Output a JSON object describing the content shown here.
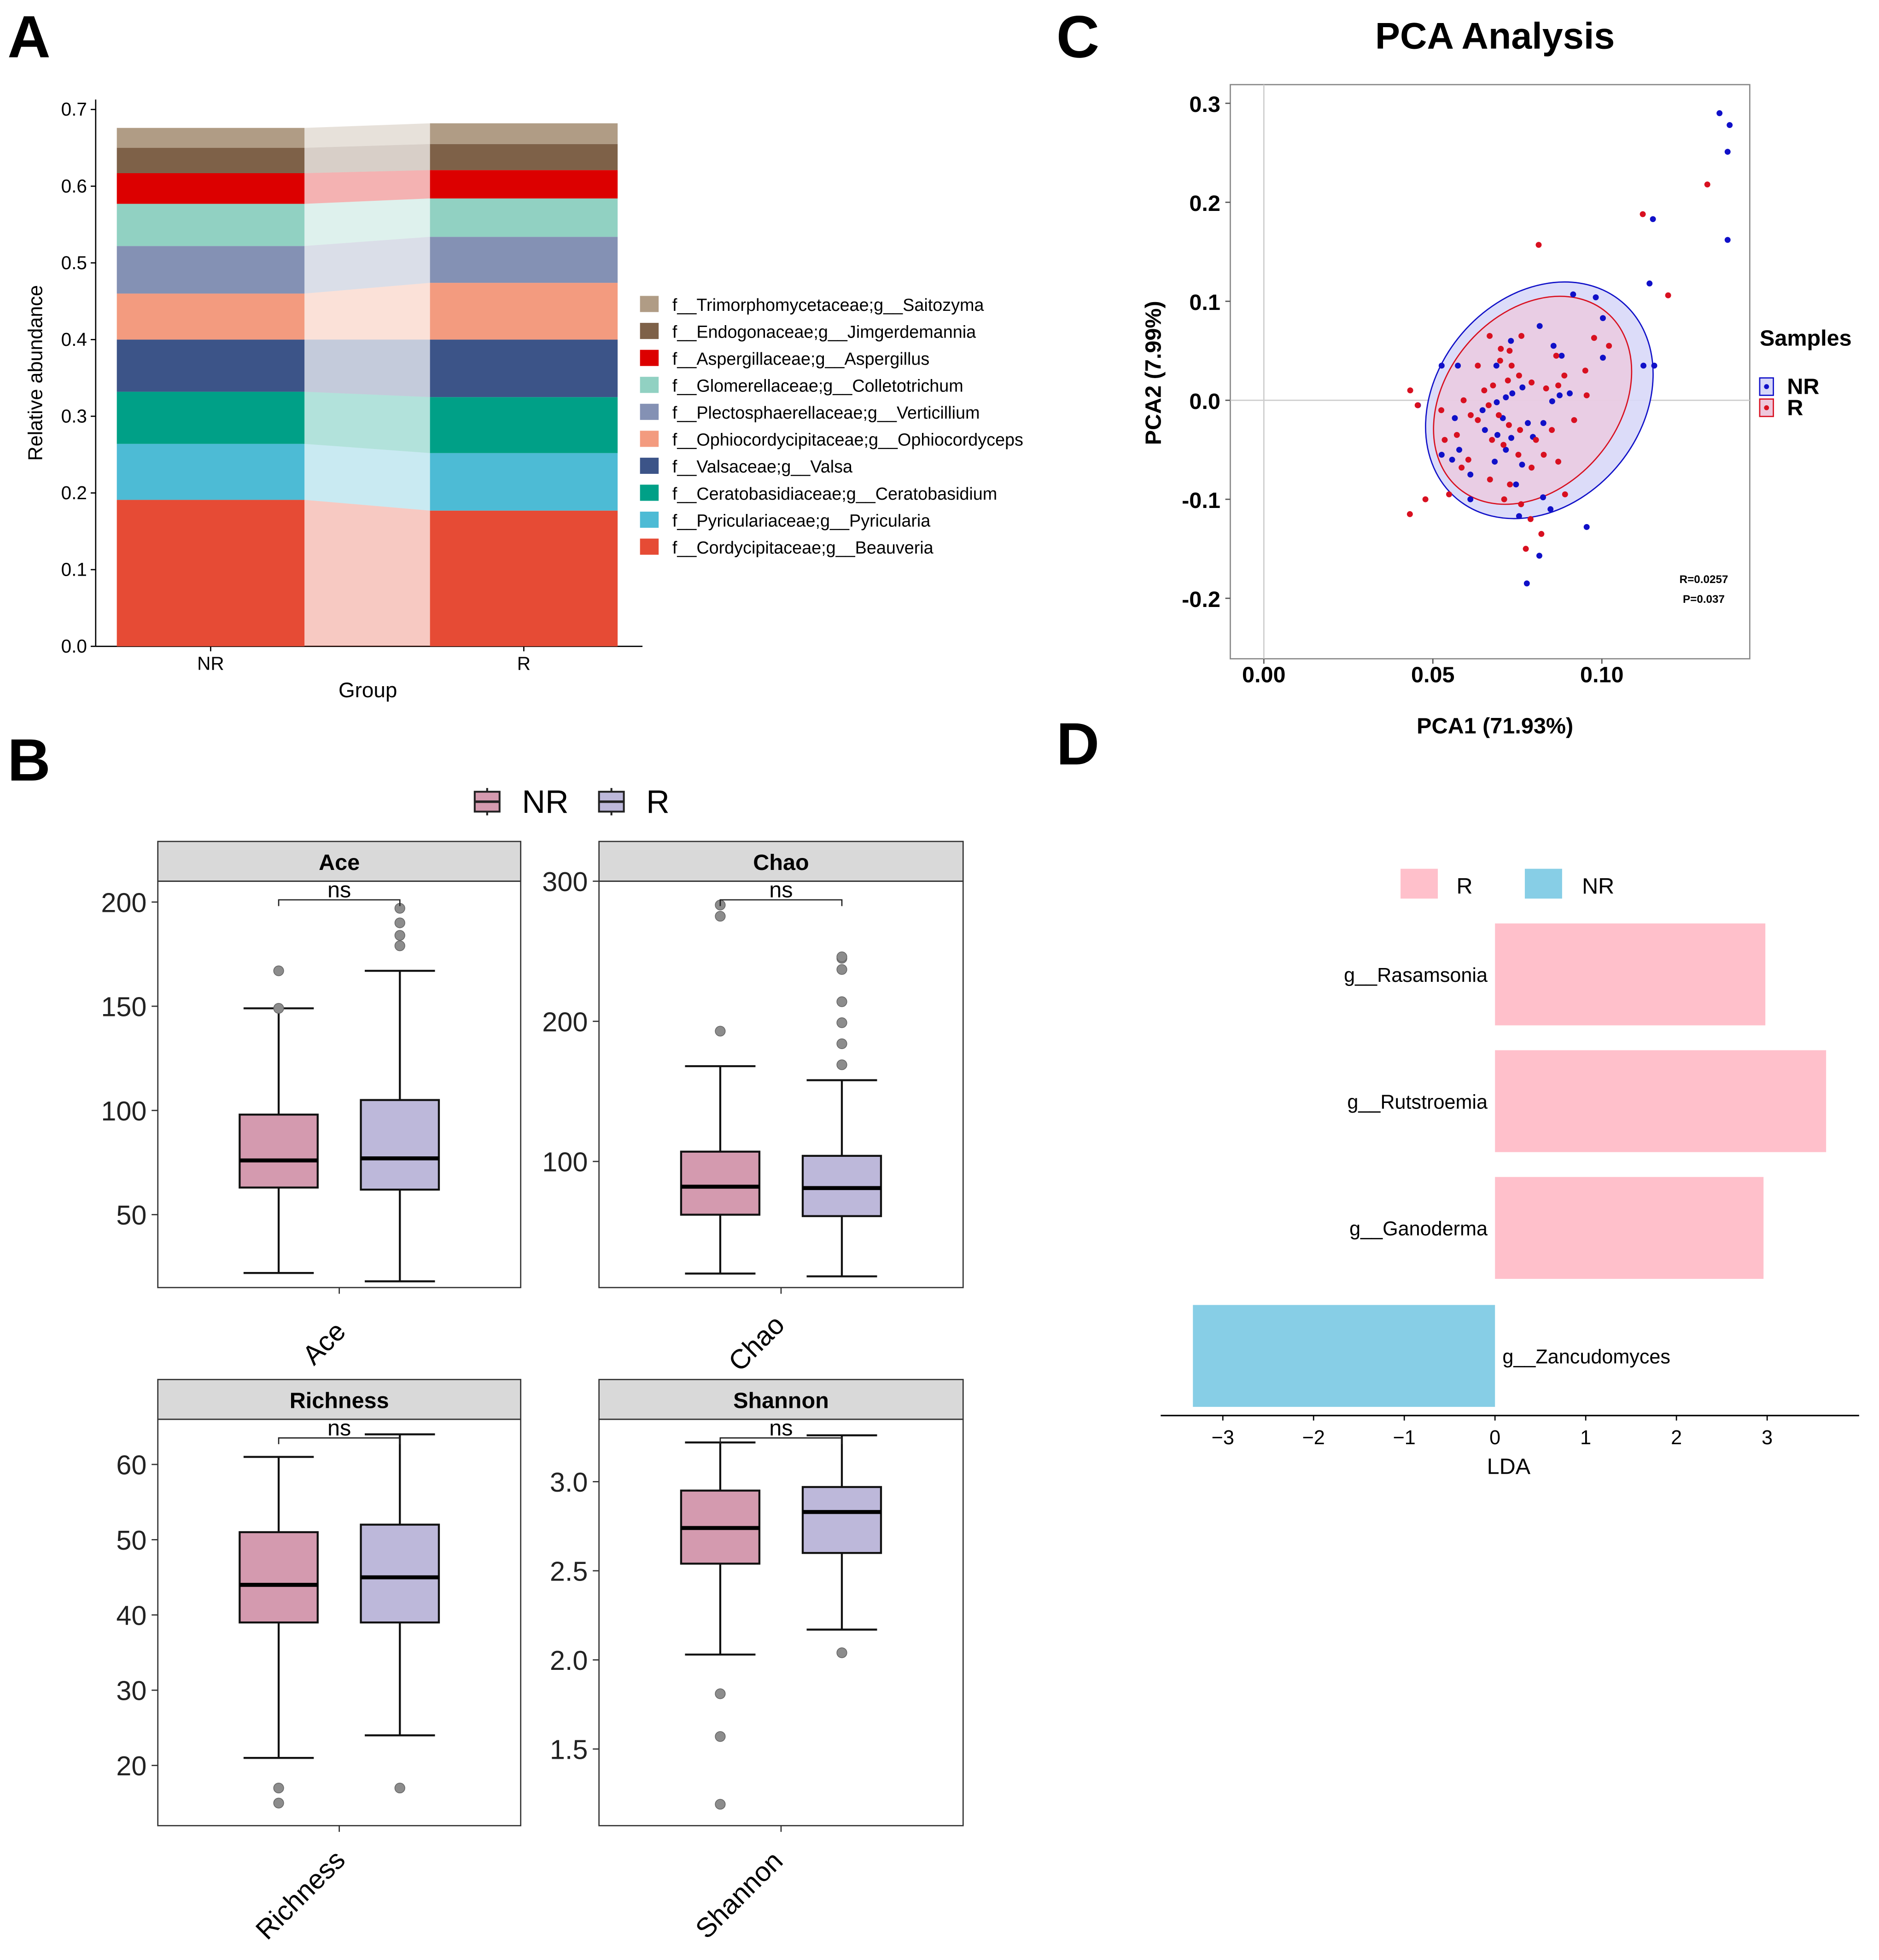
{
  "panel_labels": [
    "A",
    "B",
    "C",
    "D"
  ],
  "colors": {
    "nr_box": "#D49AAF",
    "r_box": "#BDB8DA",
    "strip": "#D9D9D9",
    "pca_nr": "#1010C8",
    "pca_r": "#D81020",
    "lda_r": "#FFC0CB",
    "lda_nr": "#87CEE6",
    "outlier": "#8C8C8C"
  },
  "chart_data": [
    {
      "id": "A",
      "type": "bar",
      "stacked": true,
      "title": "",
      "xlabel": "Group",
      "ylabel": "Relative abundance",
      "categories": [
        "NR",
        "R"
      ],
      "ylim": [
        0,
        0.7
      ],
      "yticks": [
        "0.0",
        "0.1",
        "0.2",
        "0.3",
        "0.4",
        "0.5",
        "0.6",
        "0.7"
      ],
      "series": [
        {
          "name": "f__Cordycipitaceae;g__Beauveria",
          "color": "#E64B35",
          "values": [
            0.191,
            0.177
          ]
        },
        {
          "name": "f__Pyriculariaceae;g__Pyricularia",
          "color": "#4DBBD5",
          "values": [
            0.073,
            0.075
          ]
        },
        {
          "name": "f__Ceratobasidiaceae;g__Ceratobasidium",
          "color": "#00A087",
          "values": [
            0.068,
            0.073
          ]
        },
        {
          "name": "f__Valsaceae;g__Valsa",
          "color": "#3C5488",
          "values": [
            0.068,
            0.075
          ]
        },
        {
          "name": "f__Ophiocordycipitaceae;g__Ophiocordyceps",
          "color": "#F39B7F",
          "values": [
            0.06,
            0.074
          ]
        },
        {
          "name": "f__Plectosphaerellaceae;g__Verticillium",
          "color": "#8491B4",
          "values": [
            0.062,
            0.06
          ]
        },
        {
          "name": "f__Glomerellaceae;g__Colletotrichum",
          "color": "#91D1C2",
          "values": [
            0.055,
            0.05
          ]
        },
        {
          "name": "f__Aspergillaceae;g__Aspergillus",
          "color": "#DC0000",
          "values": [
            0.04,
            0.037
          ]
        },
        {
          "name": "f__Endogonaceae;g__Jimgerdemannia",
          "color": "#7E6148",
          "values": [
            0.033,
            0.034
          ]
        },
        {
          "name": "f__Trimorphomycetaceae;g__Saitozyma",
          "color": "#B09C85",
          "values": [
            0.026,
            0.027
          ]
        }
      ]
    },
    {
      "id": "B",
      "type": "box",
      "legend": [
        "NR",
        "R"
      ],
      "facets": [
        {
          "title": "Ace",
          "xtick": "Ace",
          "sig": "ns",
          "ylim": [
            15,
            210
          ],
          "yticks": [
            50,
            100,
            150,
            200
          ],
          "groups": [
            {
              "name": "NR",
              "q1": 63,
              "median": 76,
              "q3": 98,
              "wlow": 22,
              "whigh": 149,
              "outliers": [
                149,
                167
              ]
            },
            {
              "name": "R",
              "q1": 62,
              "median": 77,
              "q3": 105,
              "wlow": 18,
              "whigh": 167,
              "outliers": [
                179,
                184,
                190,
                197
              ]
            }
          ]
        },
        {
          "title": "Chao",
          "xtick": "Chao",
          "sig": "ns",
          "ylim": [
            10,
            300
          ],
          "yticks": [
            100,
            200,
            300
          ],
          "groups": [
            {
              "name": "NR",
              "q1": 62,
              "median": 82,
              "q3": 107,
              "wlow": 20,
              "whigh": 168,
              "outliers": [
                193,
                275,
                283
              ]
            },
            {
              "name": "R",
              "q1": 61,
              "median": 81,
              "q3": 104,
              "wlow": 18,
              "whigh": 158,
              "outliers": [
                169,
                184,
                199,
                214,
                237,
                245,
                246
              ]
            }
          ]
        },
        {
          "title": "Richness",
          "xtick": "Richness",
          "sig": "ns",
          "ylim": [
            12,
            66
          ],
          "yticks": [
            20,
            30,
            40,
            50,
            60
          ],
          "groups": [
            {
              "name": "NR",
              "q1": 39,
              "median": 44,
              "q3": 51,
              "wlow": 21,
              "whigh": 61,
              "outliers": [
                15,
                17
              ]
            },
            {
              "name": "R",
              "q1": 39,
              "median": 45,
              "q3": 52,
              "wlow": 24,
              "whigh": 64,
              "outliers": [
                17
              ]
            }
          ]
        },
        {
          "title": "Shannon",
          "xtick": "Shannon",
          "sig": "ns",
          "ylim": [
            1.07,
            3.35
          ],
          "yticks": [
            "1.5",
            "2.0",
            "2.5",
            "3.0"
          ],
          "groups": [
            {
              "name": "NR",
              "q1": 2.54,
              "median": 2.74,
              "q3": 2.95,
              "wlow": 2.03,
              "whigh": 3.22,
              "outliers": [
                1.19,
                1.57,
                1.81
              ]
            },
            {
              "name": "R",
              "q1": 2.6,
              "median": 2.83,
              "q3": 2.97,
              "wlow": 2.17,
              "whigh": 3.26,
              "outliers": [
                2.04
              ]
            }
          ]
        }
      ]
    },
    {
      "id": "C",
      "type": "scatter",
      "title": "PCA Analysis",
      "xlabel": "PCA1 (71.93%)",
      "ylabel": "PCA2 (7.99%)",
      "xlim": [
        -0.005,
        0.144
      ],
      "ylim": [
        -0.26,
        0.32
      ],
      "xticks": [
        "0.00",
        "0.05",
        "0.10"
      ],
      "yticks": [
        "-0.2",
        "-0.1",
        "0.0",
        "0.1",
        "0.2",
        "0.3"
      ],
      "legend_title": "Samples",
      "annotation": [
        "R=0.0257",
        "P=0.037"
      ],
      "ellipses": [
        {
          "name": "NR",
          "cx": 0.0815,
          "cy": 0.0,
          "rx": 0.038,
          "ry": 0.172,
          "angle": 28
        },
        {
          "name": "R",
          "cx": 0.0795,
          "cy": 0.0,
          "rx": 0.034,
          "ry": 0.145,
          "angle": 28
        }
      ],
      "series": [
        {
          "name": "NR",
          "points": [
            [
              0.1348,
              0.29
            ],
            [
              0.1378,
              0.278
            ],
            [
              0.1372,
              0.251
            ],
            [
              0.1372,
              0.162
            ],
            [
              0.1151,
              0.183
            ],
            [
              0.1141,
              0.118
            ],
            [
              0.0915,
              0.107
            ],
            [
              0.0982,
              0.104
            ],
            [
              0.1003,
              0.083
            ],
            [
              0.1155,
              0.035
            ],
            [
              0.1123,
              0.035
            ],
            [
              0.1003,
              0.043
            ],
            [
              0.0881,
              0.045
            ],
            [
              0.0857,
              0.055
            ],
            [
              0.0816,
              0.075
            ],
            [
              0.0731,
              0.06
            ],
            [
              0.0688,
              0.035
            ],
            [
              0.0574,
              0.035
            ],
            [
              0.0526,
              0.035
            ],
            [
              0.0456,
              -0.005
            ],
            [
              0.0526,
              -0.055
            ],
            [
              0.0578,
              -0.05
            ],
            [
              0.0611,
              -0.075
            ],
            [
              0.0716,
              -0.05
            ],
            [
              0.0746,
              -0.085
            ],
            [
              0.0826,
              -0.098
            ],
            [
              0.0755,
              -0.117
            ],
            [
              0.0848,
              -0.11
            ],
            [
              0.0955,
              -0.128
            ],
            [
              0.0778,
              -0.185
            ],
            [
              0.0815,
              -0.157
            ],
            [
              0.0647,
              -0.01
            ],
            [
              0.0689,
              -0.002
            ],
            [
              0.0716,
              0.003
            ],
            [
              0.0735,
              0.007
            ],
            [
              0.0765,
              0.013
            ],
            [
              0.0781,
              -0.023
            ],
            [
              0.0796,
              -0.037
            ],
            [
              0.0827,
              -0.023
            ],
            [
              0.0853,
              -0.001
            ],
            [
              0.0875,
              0.005
            ],
            [
              0.0905,
              0.007
            ],
            [
              0.0707,
              -0.018
            ],
            [
              0.0654,
              -0.03
            ],
            [
              0.0565,
              -0.018
            ],
            [
              0.0557,
              -0.06
            ],
            [
              0.0611,
              -0.1
            ],
            [
              0.0683,
              -0.062
            ],
            [
              0.0764,
              -0.065
            ],
            [
              0.0732,
              -0.038
            ],
            [
              0.0691,
              -0.035
            ]
          ]
        },
        {
          "name": "R",
          "points": [
            [
              0.1312,
              0.218
            ],
            [
              0.1121,
              0.188
            ],
            [
              0.1196,
              0.106
            ],
            [
              0.0813,
              0.157
            ],
            [
              0.0977,
              0.063
            ],
            [
              0.1021,
              0.055
            ],
            [
              0.0951,
              0.03
            ],
            [
              0.0955,
              0.005
            ],
            [
              0.0889,
              0.025
            ],
            [
              0.0865,
              0.045
            ],
            [
              0.0762,
              0.065
            ],
            [
              0.0727,
              0.05
            ],
            [
              0.0699,
              0.04
            ],
            [
              0.0633,
              0.035
            ],
            [
              0.0433,
              0.01
            ],
            [
              0.0455,
              -0.005
            ],
            [
              0.0478,
              -0.1
            ],
            [
              0.0432,
              -0.115
            ],
            [
              0.0548,
              -0.095
            ],
            [
              0.0585,
              -0.068
            ],
            [
              0.0605,
              -0.06
            ],
            [
              0.0669,
              -0.08
            ],
            [
              0.0728,
              -0.085
            ],
            [
              0.0761,
              -0.105
            ],
            [
              0.0789,
              -0.12
            ],
            [
              0.0821,
              -0.135
            ],
            [
              0.0775,
              -0.15
            ],
            [
              0.0711,
              -0.1
            ],
            [
              0.0891,
              -0.095
            ],
            [
              0.0871,
              -0.062
            ],
            [
              0.0828,
              -0.055
            ],
            [
              0.0792,
              -0.068
            ],
            [
              0.0753,
              -0.055
            ],
            [
              0.0709,
              -0.045
            ],
            [
              0.0675,
              -0.04
            ],
            [
              0.0633,
              -0.02
            ],
            [
              0.0612,
              -0.015
            ],
            [
              0.0571,
              -0.035
            ],
            [
              0.0535,
              -0.04
            ],
            [
              0.0525,
              -0.01
            ],
            [
              0.0591,
              0.0
            ],
            [
              0.0652,
              0.01
            ],
            [
              0.0678,
              0.015
            ],
            [
              0.0722,
              0.02
            ],
            [
              0.0755,
              0.025
            ],
            [
              0.0792,
              0.018
            ],
            [
              0.0835,
              0.012
            ],
            [
              0.0871,
              0.015
            ],
            [
              0.0918,
              -0.02
            ],
            [
              0.0852,
              -0.03
            ],
            [
              0.0805,
              -0.04
            ],
            [
              0.0758,
              -0.03
            ],
            [
              0.0725,
              -0.025
            ],
            [
              0.0695,
              -0.015
            ],
            [
              0.0665,
              -0.005
            ],
            [
              0.0733,
              0.035
            ],
            [
              0.0701,
              0.052
            ],
            [
              0.0668,
              0.065
            ]
          ]
        }
      ]
    },
    {
      "id": "D",
      "type": "bar",
      "orientation": "horizontal",
      "xlabel": "LDA",
      "xlim": [
        -3.7,
        4.0
      ],
      "xticks": [
        "−3",
        "−2",
        "−1",
        "0",
        "1",
        "2",
        "3"
      ],
      "legend": [
        "R",
        "NR"
      ],
      "bars": [
        {
          "name": "g__Rasamsonia",
          "value": 2.98,
          "group": "R"
        },
        {
          "name": "g__Rutstroemia",
          "value": 3.65,
          "group": "R"
        },
        {
          "name": "g__Ganoderma",
          "value": 2.96,
          "group": "R"
        },
        {
          "name": "g__Zancudomyces",
          "value": -3.33,
          "group": "NR"
        }
      ]
    }
  ]
}
